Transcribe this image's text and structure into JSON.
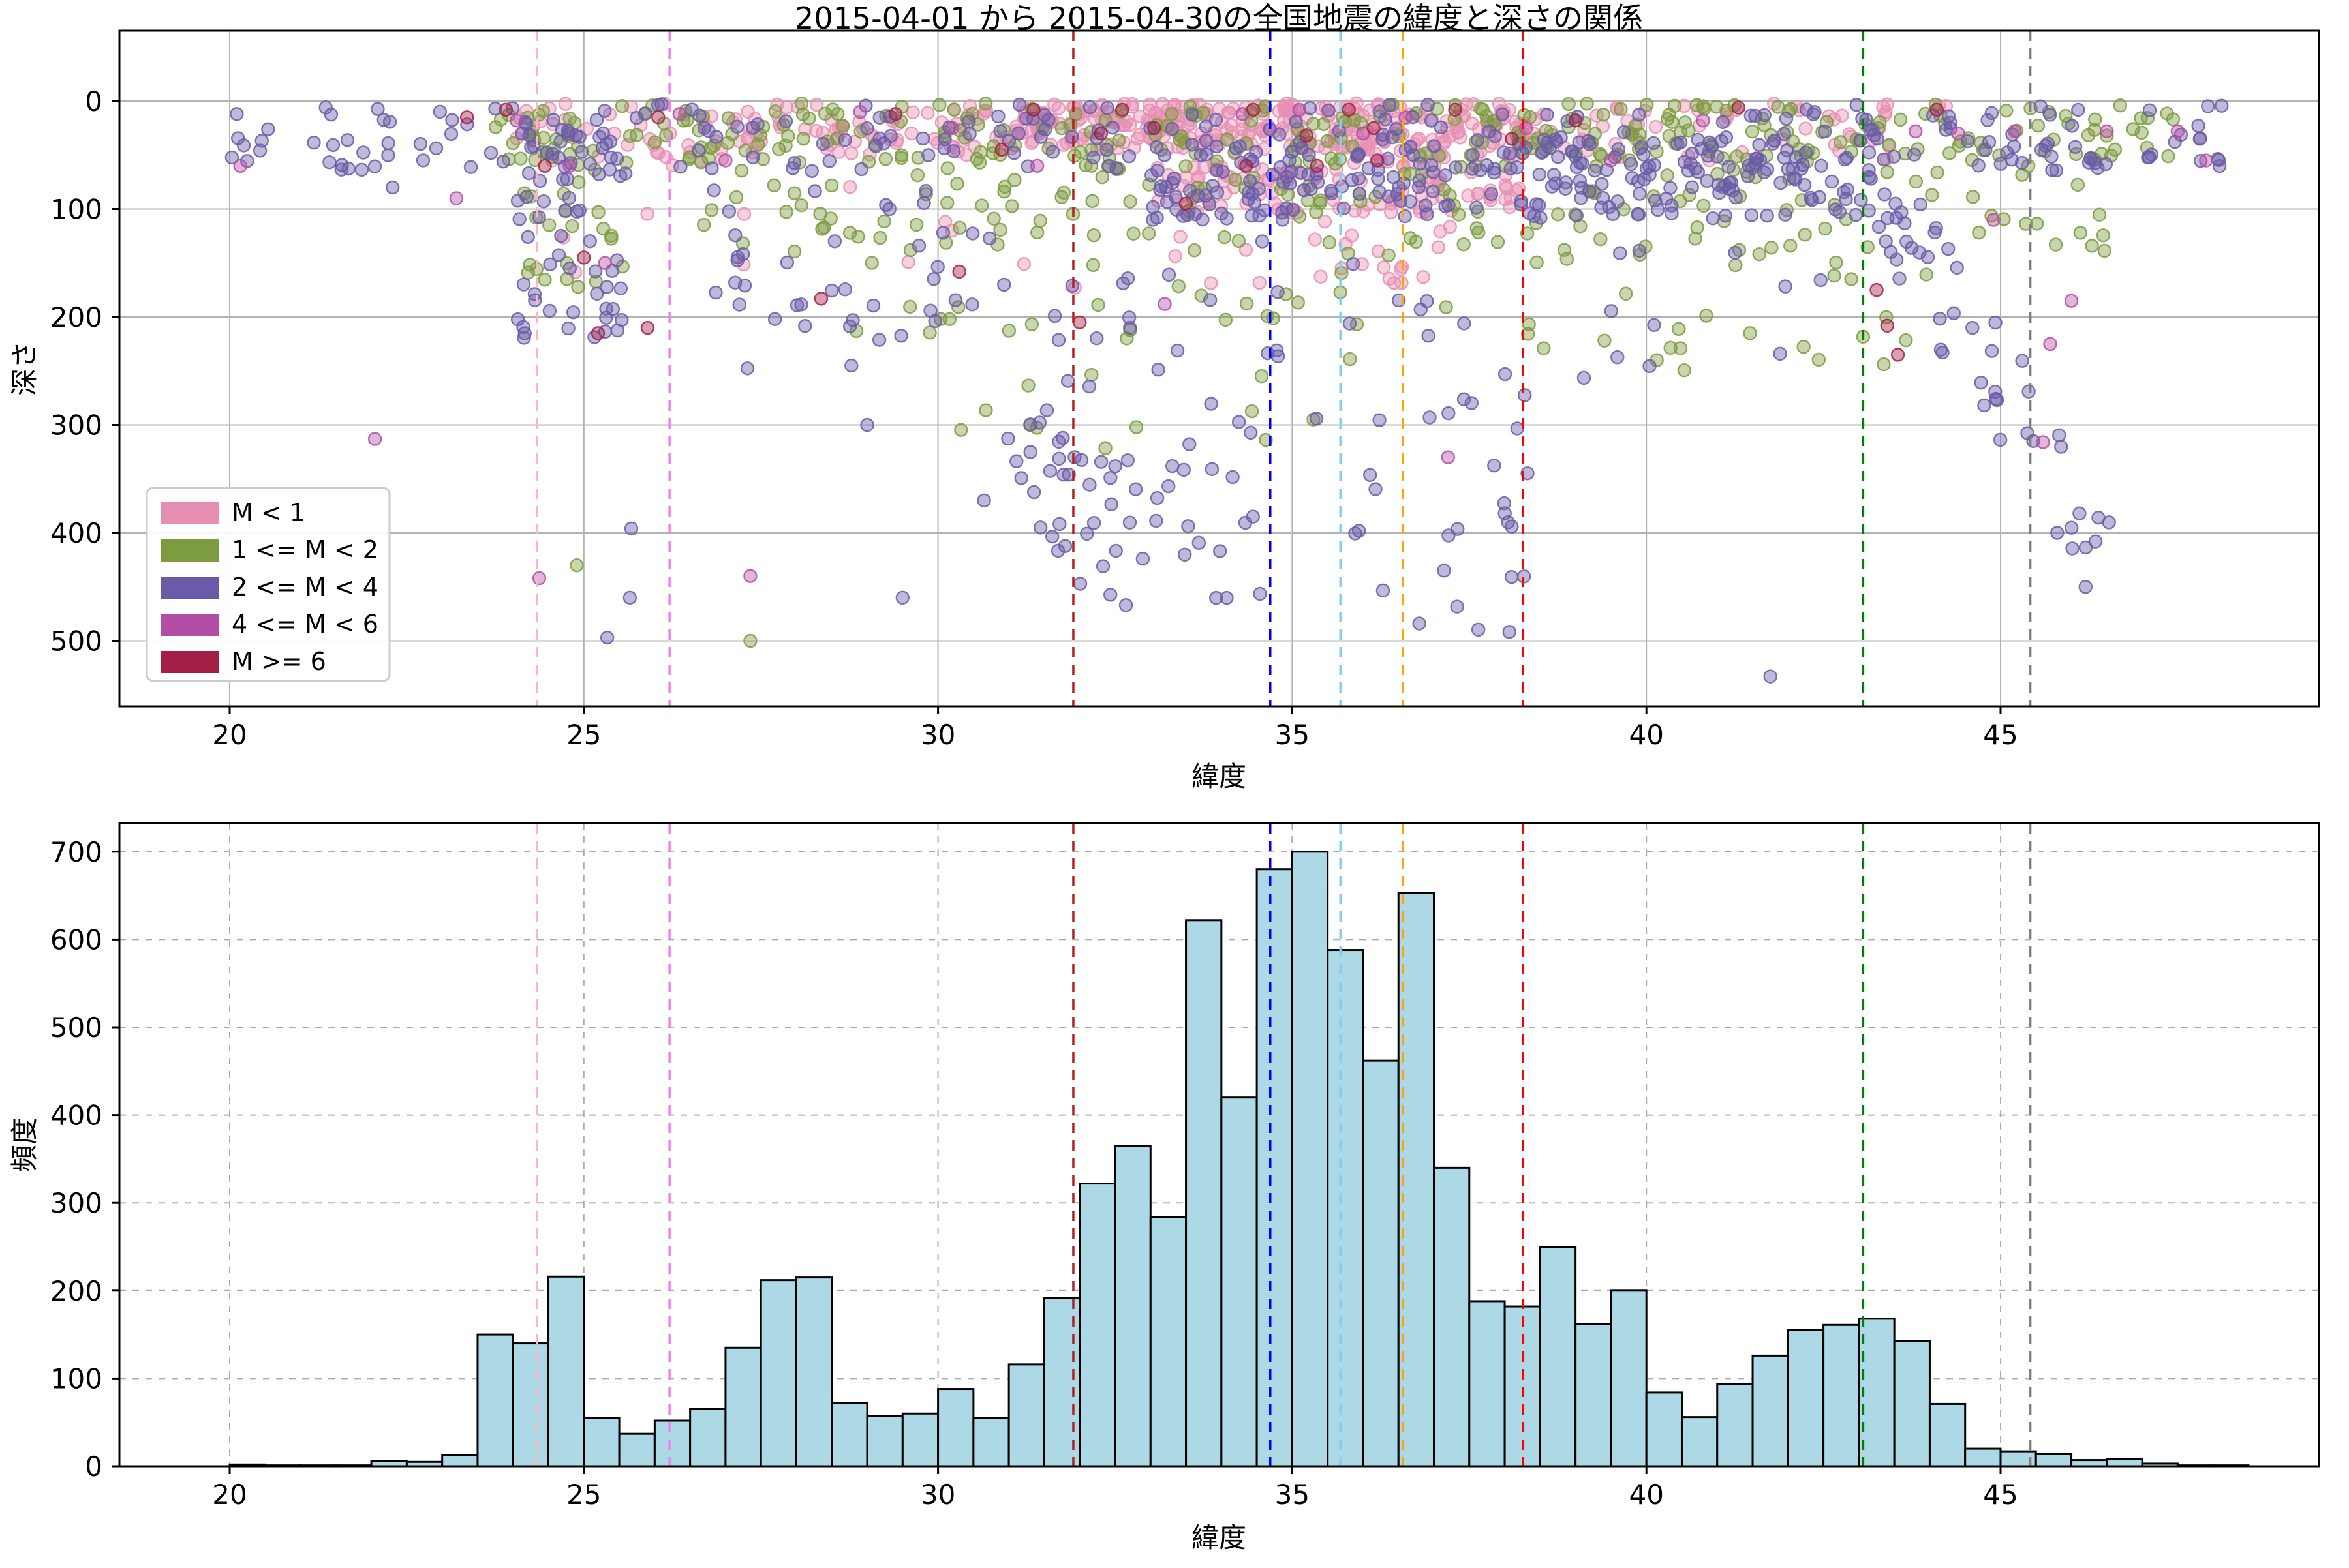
{
  "title": "2015-04-01 から 2015-04-30の全国地震の緯度と深さの関係",
  "labels": {
    "xlabel": "緯度",
    "ylabel_top": "深さ",
    "ylabel_bottom": "頻度"
  },
  "legend": {
    "entries": [
      {
        "label": "M < 1",
        "color": "#e78fb3"
      },
      {
        "label": "1 <= M < 2",
        "color": "#7d9b3f"
      },
      {
        "label": "2 <= M < 4",
        "color": "#6a5aa8"
      },
      {
        "label": "4 <= M < 6",
        "color": "#b44ea5"
      },
      {
        "label": "M >= 6",
        "color": "#a31e45"
      }
    ]
  },
  "colors": {
    "bar_fill": "#add8e6",
    "bar_edge": "#000000",
    "grid_top": "#b3b3b3",
    "grid_bottom": "#ababab",
    "spine": "#000000"
  },
  "chart_data": [
    {
      "type": "scatter",
      "title": "2015-04-01 から 2015-04-30の全国地震の緯度と深さの関係",
      "xlabel": "緯度",
      "ylabel": "深さ",
      "xlim": [
        18.4,
        49.5
      ],
      "ylim_depth": [
        0,
        560
      ],
      "y_inverted": true,
      "xticks": [
        20,
        25,
        30,
        35,
        40,
        45
      ],
      "yticks": [
        0,
        100,
        200,
        300,
        400,
        500
      ],
      "grid": "solid",
      "legend_position": "lower left",
      "city_lines": [
        {
          "lat": 24.34,
          "color": "#ffb6c1"
        },
        {
          "lat": 26.21,
          "color": "#ee82ee"
        },
        {
          "lat": 31.91,
          "color": "#b22222"
        },
        {
          "lat": 34.69,
          "color": "#0000ff"
        },
        {
          "lat": 35.68,
          "color": "#87ceeb"
        },
        {
          "lat": 36.56,
          "color": "#ffa500"
        },
        {
          "lat": 38.26,
          "color": "#ff0000"
        },
        {
          "lat": 43.06,
          "color": "#008000"
        },
        {
          "lat": 45.42,
          "color": "#7f7f7f"
        }
      ],
      "series": [
        {
          "name": "M < 1",
          "color": "#e78fb3",
          "seed": 101,
          "clusters": [
            {
              "n": 300,
              "lat": [
                31.0,
                38.6
              ],
              "depth": [
                2,
                45
              ]
            },
            {
              "n": 120,
              "lat": [
                33.0,
                38.2
              ],
              "depth": [
                45,
                105
              ]
            },
            {
              "n": 70,
              "lat": [
                27.0,
                31.0
              ],
              "depth": [
                2,
                50
              ]
            },
            {
              "n": 40,
              "lat": [
                24.0,
                27.0
              ],
              "depth": [
                2,
                60
              ]
            },
            {
              "n": 50,
              "lat": [
                38.6,
                44.3
              ],
              "depth": [
                2,
                55
              ]
            },
            {
              "n": 25,
              "lat": [
                31.0,
                38.0
              ],
              "depth": [
                105,
                175
              ]
            },
            {
              "n": 8,
              "lat": [
                24.5,
                30.5
              ],
              "depth": [
                60,
                160
              ]
            }
          ],
          "points": [
            [
              33.1,
              62
            ],
            [
              36.4,
              95
            ],
            [
              30.2,
              120
            ]
          ]
        },
        {
          "name": "1 <= M < 2",
          "color": "#7d9b3f",
          "seed": 202,
          "clusters": [
            {
              "n": 280,
              "lat": [
                23.7,
                47.5
              ],
              "depth": [
                2,
                55
              ]
            },
            {
              "n": 160,
              "lat": [
                26.5,
                46.5
              ],
              "depth": [
                55,
                140
              ]
            },
            {
              "n": 55,
              "lat": [
                28.0,
                44.0
              ],
              "depth": [
                140,
                250
              ]
            },
            {
              "n": 30,
              "lat": [
                24.0,
                25.6
              ],
              "depth": [
                15,
                200
              ]
            },
            {
              "n": 10,
              "lat": [
                30.0,
                36.5
              ],
              "depth": [
                250,
                330
              ]
            }
          ],
          "points": [
            [
              27.35,
              500
            ],
            [
              31.3,
              300
            ],
            [
              35.3,
              295
            ],
            [
              24.9,
              430
            ]
          ]
        },
        {
          "name": "2 <= M < 4",
          "color": "#6a5aa8",
          "seed": 303,
          "clusters": [
            {
              "n": 250,
              "lat": [
                20.0,
                48.2
              ],
              "depth": [
                3,
                65
              ]
            },
            {
              "n": 220,
              "lat": [
                33.0,
                43.0
              ],
              "depth": [
                35,
                110
              ]
            },
            {
              "n": 60,
              "lat": [
                24.0,
                25.6
              ],
              "depth": [
                15,
                225
              ]
            },
            {
              "n": 35,
              "lat": [
                26.5,
                30.5
              ],
              "depth": [
                60,
                250
              ]
            },
            {
              "n": 40,
              "lat": [
                30.8,
                34.6
              ],
              "depth": [
                290,
                470
              ]
            },
            {
              "n": 14,
              "lat": [
                31.5,
                34.5
              ],
              "depth": [
                330,
                420
              ]
            },
            {
              "n": 35,
              "lat": [
                35.8,
                38.4
              ],
              "depth": [
                150,
                500
              ]
            },
            {
              "n": 30,
              "lat": [
                28.5,
                35.5
              ],
              "depth": [
                120,
                300
              ]
            },
            {
              "n": 55,
              "lat": [
                43.0,
                46.6
              ],
              "slab_depth": [
                60,
                420
              ],
              "spread": 55
            },
            {
              "n": 12,
              "lat": [
                38.5,
                42.5
              ],
              "depth": [
                100,
                260
              ]
            }
          ],
          "points": [
            [
              41.75,
              533
            ],
            [
              25.33,
              497
            ],
            [
              25.65,
              460
            ],
            [
              25.67,
              396
            ],
            [
              22.3,
              80
            ],
            [
              20.1,
              12
            ],
            [
              46.2,
              450
            ],
            [
              45.8,
              400
            ],
            [
              44.95,
              277
            ],
            [
              30.65,
              370
            ],
            [
              29.5,
              460
            ],
            [
              29.0,
              300
            ]
          ]
        },
        {
          "name": "4 <= M < 6",
          "color": "#b44ea5",
          "seed": 404,
          "clusters": [],
          "points": [
            [
              20.15,
              60
            ],
            [
              22.05,
              313
            ],
            [
              23.2,
              90
            ],
            [
              24.05,
              18
            ],
            [
              24.37,
              442
            ],
            [
              24.8,
              60
            ],
            [
              25.3,
              150
            ],
            [
              26.35,
              12
            ],
            [
              27.0,
              55
            ],
            [
              27.35,
              440
            ],
            [
              28.9,
              10
            ],
            [
              30.2,
              25
            ],
            [
              31.4,
              60
            ],
            [
              33.2,
              188
            ],
            [
              34.3,
              12
            ],
            [
              35.1,
              8
            ],
            [
              36.0,
              30
            ],
            [
              36.6,
              15
            ],
            [
              37.2,
              330
            ],
            [
              38.3,
              25
            ],
            [
              39.5,
              55
            ],
            [
              40.8,
              18
            ],
            [
              43.8,
              28
            ],
            [
              44.4,
              30
            ],
            [
              44.9,
              110
            ],
            [
              45.2,
              28
            ],
            [
              45.7,
              225
            ],
            [
              46.0,
              185
            ],
            [
              46.5,
              28
            ],
            [
              47.5,
              28
            ],
            [
              47.9,
              55
            ],
            [
              45.6,
              316
            ]
          ]
        },
        {
          "name": "M >= 6",
          "color": "#a31e45",
          "seed": 505,
          "clusters": [],
          "points": [
            [
              23.35,
              15
            ],
            [
              23.9,
              8
            ],
            [
              24.45,
              60
            ],
            [
              25.0,
              145
            ],
            [
              25.2,
              215
            ],
            [
              25.9,
              210
            ],
            [
              26.05,
              15
            ],
            [
              28.35,
              183
            ],
            [
              29.4,
              12
            ],
            [
              30.3,
              158
            ],
            [
              30.9,
              45
            ],
            [
              31.35,
              8
            ],
            [
              32.0,
              205
            ],
            [
              32.3,
              30
            ],
            [
              32.6,
              8
            ],
            [
              33.05,
              25
            ],
            [
              33.5,
              95
            ],
            [
              34.35,
              60
            ],
            [
              34.45,
              8
            ],
            [
              35.2,
              32
            ],
            [
              35.35,
              60
            ],
            [
              35.8,
              8
            ],
            [
              36.15,
              25
            ],
            [
              36.2,
              55
            ],
            [
              37.3,
              8
            ],
            [
              38.1,
              35
            ],
            [
              39.0,
              18
            ],
            [
              41.3,
              6
            ],
            [
              43.25,
              175
            ],
            [
              43.4,
              208
            ],
            [
              43.55,
              235
            ],
            [
              44.1,
              8
            ]
          ]
        }
      ]
    },
    {
      "type": "bar",
      "xlabel": "緯度",
      "ylabel": "頻度",
      "xlim": [
        18.4,
        49.5
      ],
      "ylim": [
        0,
        730
      ],
      "xticks": [
        20,
        25,
        30,
        35,
        40,
        45
      ],
      "yticks": [
        0,
        100,
        200,
        300,
        400,
        500,
        600,
        700
      ],
      "grid": "dashed",
      "bin_start": 20.0,
      "bin_width": 0.5,
      "values": [
        2,
        1,
        1,
        1,
        6,
        5,
        13,
        150,
        140,
        216,
        55,
        37,
        52,
        65,
        135,
        212,
        215,
        72,
        57,
        60,
        88,
        55,
        116,
        192,
        322,
        365,
        284,
        622,
        420,
        680,
        700,
        588,
        462,
        653,
        340,
        188,
        182,
        250,
        162,
        200,
        84,
        56,
        94,
        126,
        155,
        161,
        168,
        143,
        71,
        20,
        17,
        14,
        7,
        8,
        3,
        1,
        1
      ],
      "city_lines": [
        {
          "lat": 24.34,
          "color": "#ffb6c1"
        },
        {
          "lat": 26.21,
          "color": "#ee82ee"
        },
        {
          "lat": 31.91,
          "color": "#b22222"
        },
        {
          "lat": 34.69,
          "color": "#0000ff"
        },
        {
          "lat": 35.68,
          "color": "#87ceeb"
        },
        {
          "lat": 36.56,
          "color": "#ffa500"
        },
        {
          "lat": 38.26,
          "color": "#ff0000"
        },
        {
          "lat": 43.06,
          "color": "#008000"
        },
        {
          "lat": 45.42,
          "color": "#7f7f7f"
        }
      ]
    }
  ]
}
